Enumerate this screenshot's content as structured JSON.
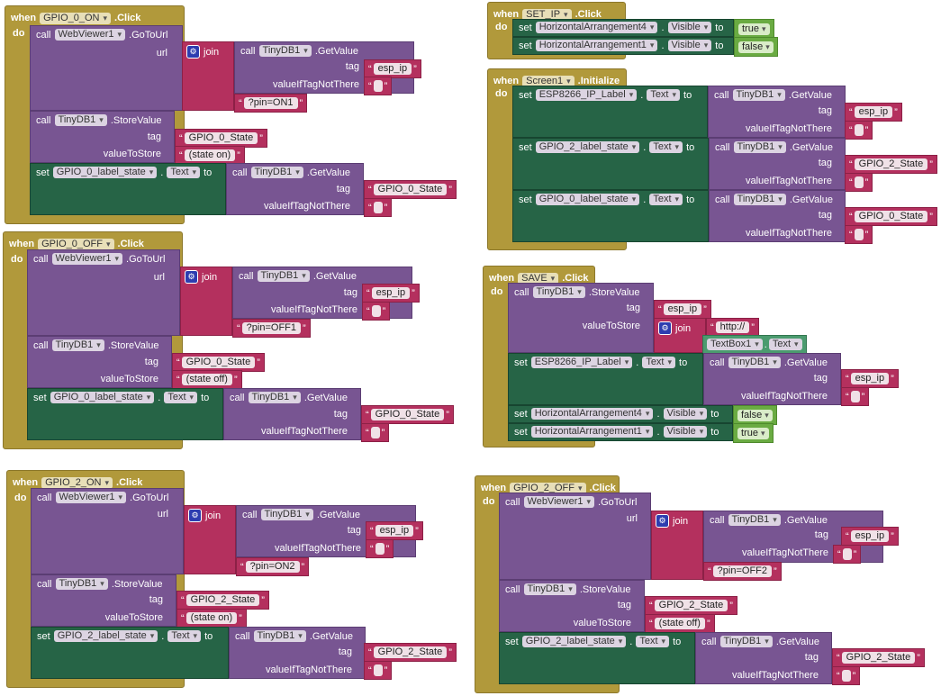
{
  "kw": {
    "when": "when",
    "do": "do",
    "call": "call",
    "set": "set",
    "to": "to",
    "dot": ".",
    "join": "join",
    "url": "url",
    "tag": "tag",
    "valueIfTagNotThere": "valueIfTagNotThere",
    "valueToStore": "valueToStore",
    "click": ".Click",
    "initialize": ".Initialize",
    "goToUrl": ".GoToUrl",
    "getValue": ".GetValue",
    "storeValue": ".StoreValue",
    "q_open": "“",
    "q_close": "”",
    "gear": "⚙"
  },
  "comp": {
    "webViewer": "WebViewer1",
    "tinyDb": "TinyDB1",
    "text": "Text",
    "visible": "Visible",
    "textBox": "TextBox1",
    "ha4": "HorizontalArrangement4",
    "ha1": "HorizontalArrangement1",
    "espLabel": "ESP8266_IP_Label",
    "gpio0Label": "GPIO_0_label_state",
    "gpio2Label": "GPIO_2_label_state"
  },
  "events": {
    "gpio0on": "GPIO_0_ON",
    "gpio0off": "GPIO_0_OFF",
    "gpio2on": "GPIO_2_ON",
    "gpio2off": "GPIO_2_OFF",
    "setip": "SET_IP",
    "screen1": "Screen1",
    "save": "SAVE"
  },
  "strings": {
    "esp_ip": "esp_ip",
    "pin_on1": "?pin=ON1",
    "pin_off1": "?pin=OFF1",
    "pin_on2": "?pin=ON2",
    "pin_off2": "?pin=OFF2",
    "gpio0State": "GPIO_0_State",
    "gpio2State": "GPIO_2_State",
    "state_on": "(state on)",
    "state_off": "(state off)",
    "http": "http://"
  },
  "bools": {
    "true": "true",
    "false": "false"
  }
}
